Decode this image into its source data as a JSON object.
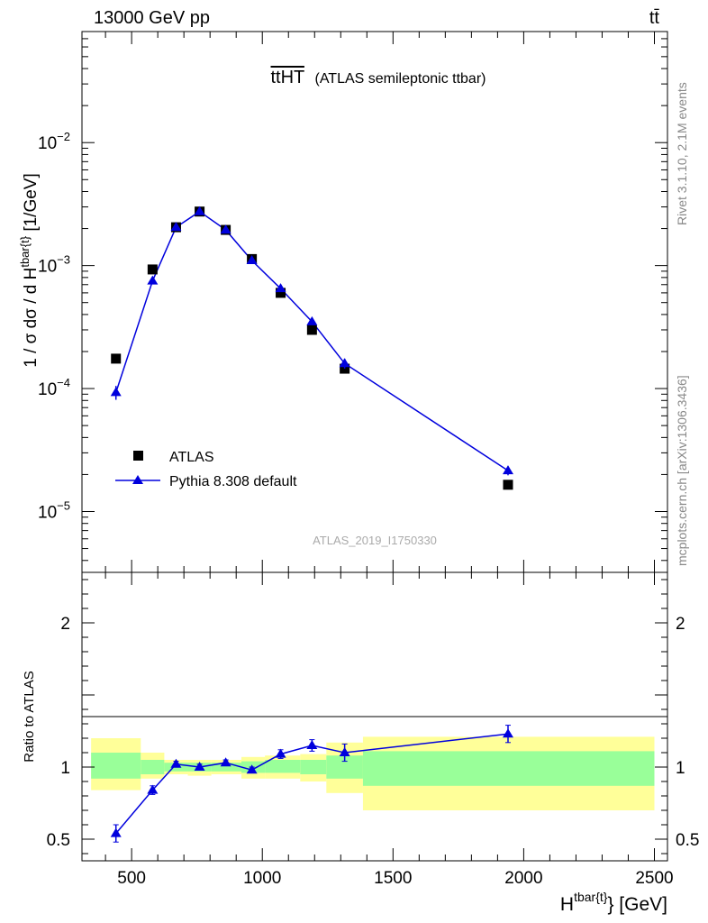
{
  "header": {
    "left": "13000 GeV pp",
    "right": "tt̄"
  },
  "plot_title": {
    "main": "ttHT",
    "sub": "(ATLAS semileptonic ttbar)"
  },
  "side_text": {
    "rivet": "Rivet 3.1.10,  2.1M events",
    "mcplots": "mcplots.cern.ch [arXiv:1306.3436]"
  },
  "analysis_id": "ATLAS_2019_I1750330",
  "colors": {
    "data": "#000000",
    "mc": "#0000dd",
    "band_inner": "#99ff99",
    "band_outer": "#ffff99"
  },
  "chart_data": [
    {
      "type": "scatter",
      "name": "main",
      "yscale": "log",
      "ylabel": "1 / σ dσ / d H_T^{tbar{t}} [1/GeV]",
      "xlim": [
        310,
        2550
      ],
      "ylim": [
        3.2e-06,
        0.08
      ],
      "yticks": [
        {
          "value": 1e-05,
          "mant": "10",
          "exp": "−5"
        },
        {
          "value": 0.0001,
          "mant": "10",
          "exp": "−4"
        },
        {
          "value": 0.001,
          "mant": "10",
          "exp": "−3"
        },
        {
          "value": 0.01,
          "mant": "10",
          "exp": "−2"
        }
      ],
      "legend_position": "bottom-left",
      "series": [
        {
          "name": "ATLAS",
          "marker": "square",
          "x": [
            440,
            580,
            670,
            760,
            860,
            960,
            1070,
            1190,
            1315,
            1940
          ],
          "y": [
            0.000175,
            0.00093,
            0.00205,
            0.00275,
            0.00195,
            0.00113,
            0.0006,
            0.0003,
            0.000145,
            1.65e-05
          ],
          "xlo": [
            345,
            535,
            625,
            715,
            805,
            920,
            1010,
            1145,
            1245,
            1385
          ],
          "xhi": [
            535,
            625,
            715,
            805,
            920,
            1010,
            1145,
            1245,
            1385,
            2500
          ]
        },
        {
          "name": "Pythia 8.308 default",
          "marker": "triangle",
          "x": [
            440,
            580,
            670,
            760,
            860,
            960,
            1070,
            1190,
            1315,
            1940
          ],
          "y": [
            9.3e-05,
            0.00075,
            0.00205,
            0.00275,
            0.00195,
            0.0011,
            0.00065,
            0.00035,
            0.00016,
            2.15e-05
          ],
          "yerr": [
            1.2e-05,
            4e-05,
            8e-05,
            0.0001,
            8e-05,
            5e-05,
            3e-05,
            2e-05,
            1.5e-05,
            1.8e-06
          ]
        }
      ]
    },
    {
      "type": "line",
      "name": "ratio",
      "ylabel": "Ratio to ATLAS",
      "xlabel": "H_T^{tbar{t}} [GeV]",
      "xlim": [
        310,
        2550
      ],
      "ylim": [
        0.35,
        2.35
      ],
      "xticks": [
        500,
        1000,
        1500,
        2000,
        2500
      ],
      "yticks": [
        {
          "value": 0.5,
          "label": "0.5"
        },
        {
          "value": 1,
          "label": "1"
        },
        {
          "value": 2,
          "label": "2"
        }
      ],
      "bands": [
        {
          "xlo": 345,
          "xhi": 535,
          "inner": [
            0.92,
            1.1
          ],
          "outer": [
            0.84,
            1.2
          ]
        },
        {
          "xlo": 535,
          "xhi": 625,
          "inner": [
            0.95,
            1.05
          ],
          "outer": [
            0.92,
            1.1
          ]
        },
        {
          "xlo": 625,
          "xhi": 715,
          "inner": [
            0.97,
            1.03
          ],
          "outer": [
            0.95,
            1.05
          ]
        },
        {
          "xlo": 715,
          "xhi": 805,
          "inner": [
            0.97,
            1.03
          ],
          "outer": [
            0.94,
            1.05
          ]
        },
        {
          "xlo": 805,
          "xhi": 920,
          "inner": [
            0.97,
            1.03
          ],
          "outer": [
            0.95,
            1.05
          ]
        },
        {
          "xlo": 920,
          "xhi": 1010,
          "inner": [
            0.96,
            1.04
          ],
          "outer": [
            0.92,
            1.07
          ]
        },
        {
          "xlo": 1010,
          "xhi": 1145,
          "inner": [
            0.96,
            1.05
          ],
          "outer": [
            0.92,
            1.08
          ]
        },
        {
          "xlo": 1145,
          "xhi": 1245,
          "inner": [
            0.95,
            1.05
          ],
          "outer": [
            0.9,
            1.09
          ]
        },
        {
          "xlo": 1245,
          "xhi": 1385,
          "inner": [
            0.92,
            1.08
          ],
          "outer": [
            0.82,
            1.17
          ]
        },
        {
          "xlo": 1385,
          "xhi": 2500,
          "inner": [
            0.87,
            1.11
          ],
          "outer": [
            0.7,
            1.21
          ]
        }
      ],
      "series": [
        {
          "name": "Pythia 8.308 default",
          "x": [
            440,
            580,
            670,
            760,
            860,
            960,
            1070,
            1190,
            1315,
            1940
          ],
          "y": [
            0.54,
            0.84,
            1.02,
            1.0,
            1.03,
            0.98,
            1.09,
            1.15,
            1.1,
            1.23
          ],
          "yerr": [
            0.06,
            0.03,
            0.02,
            0.02,
            0.02,
            0.02,
            0.03,
            0.04,
            0.06,
            0.06
          ]
        }
      ]
    }
  ]
}
